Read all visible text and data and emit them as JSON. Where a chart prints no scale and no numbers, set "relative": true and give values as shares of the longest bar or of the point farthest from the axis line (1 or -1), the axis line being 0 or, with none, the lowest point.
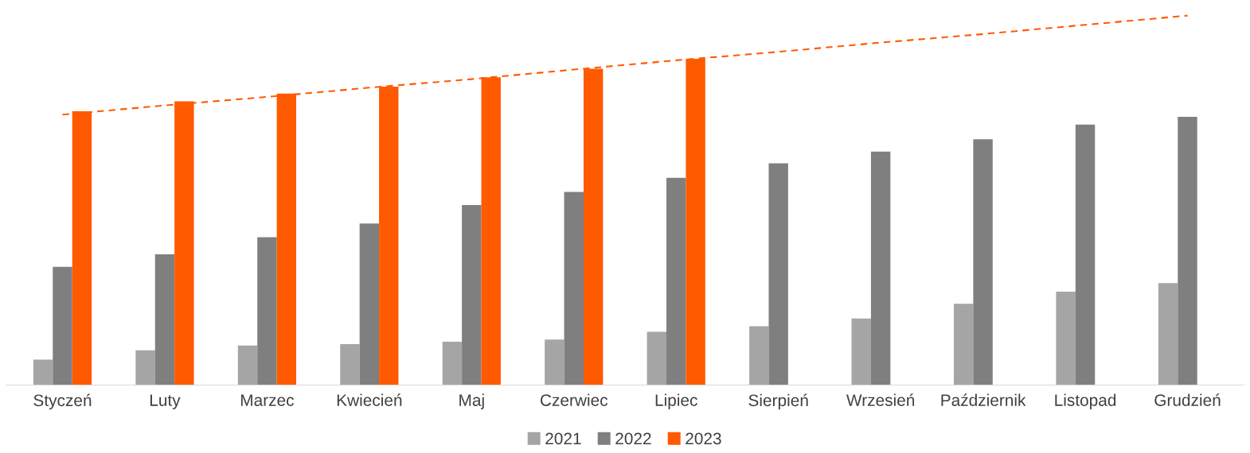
{
  "chart_data": {
    "type": "bar",
    "relative": true,
    "categories": [
      "Styczeń",
      "Luty",
      "Marzec",
      "Kwiecień",
      "Maj",
      "Czerwiec",
      "Lipiec",
      "Sierpień",
      "Wrzesień",
      "Październik",
      "Listopad",
      "Grudzień"
    ],
    "series": [
      {
        "name": "2021",
        "color": "#a5a5a5",
        "values": [
          0.069,
          0.094,
          0.107,
          0.111,
          0.117,
          0.123,
          0.144,
          0.159,
          0.18,
          0.22,
          0.253,
          0.276
        ]
      },
      {
        "name": "2022",
        "color": "#7f7f7f",
        "values": [
          0.32,
          0.354,
          0.4,
          0.437,
          0.487,
          0.523,
          0.561,
          0.6,
          0.632,
          0.665,
          0.705,
          0.726
        ]
      },
      {
        "name": "2023",
        "color": "#ff5a00",
        "values": [
          0.741,
          0.768,
          0.789,
          0.808,
          0.833,
          0.856,
          0.883,
          null,
          null,
          null,
          null,
          null
        ]
      },
      {
        "type": "line",
        "line_style": "dashed",
        "color": "#ff5a00",
        "values": [
          0.732,
          0.757,
          0.78,
          0.805,
          0.828,
          0.854,
          0.879,
          0.902,
          0.927,
          0.95,
          0.975,
          1
        ]
      }
    ],
    "grid": false,
    "legend": "bottom"
  }
}
